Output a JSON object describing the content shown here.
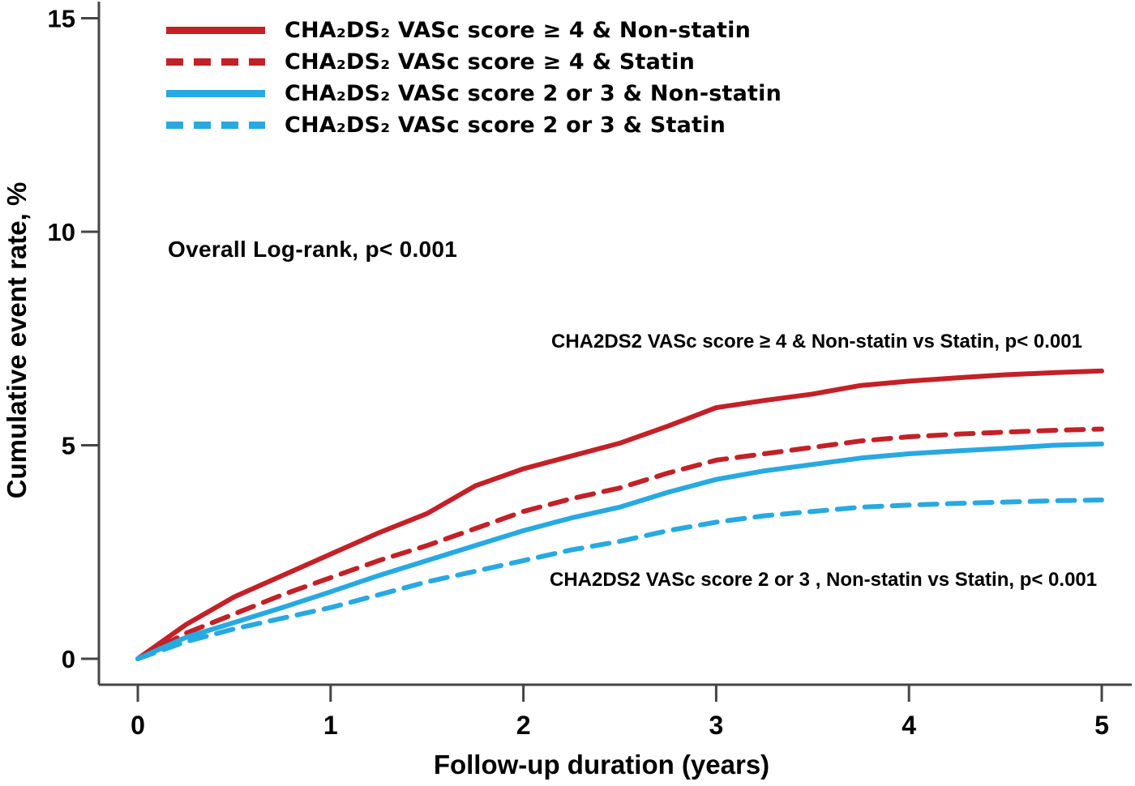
{
  "figure": {
    "ylabel": "Cumulative event rate, %",
    "xlabel": "Follow-up duration (years)"
  },
  "annotations": {
    "overall": "Overall Log-rank, p< 0.001",
    "upper_comparison": "CHA2DS2 VASc score ≥ 4 & Non-statin vs Statin, p< 0.001",
    "lower_comparison": "CHA2DS2 VASc score 2 or 3 , Non-statin vs Statin, p< 0.001"
  },
  "colors": {
    "red": "#c32127",
    "blue": "#27a9e1",
    "axis": "#454545",
    "text": "#000000"
  },
  "chart_data": {
    "type": "line",
    "title": "",
    "xlabel": "Follow-up duration (years)",
    "ylabel": "Cumulative event rate, %",
    "xlim": [
      0,
      5.2
    ],
    "ylim": [
      0,
      15.6
    ],
    "xticks": [
      0,
      1,
      2,
      3,
      4,
      5
    ],
    "yticks": [
      0,
      5,
      10,
      15
    ],
    "grid": false,
    "legend_position": "top-left",
    "x": [
      0,
      0.25,
      0.5,
      0.75,
      1,
      1.25,
      1.5,
      1.75,
      2,
      2.25,
      2.5,
      2.75,
      3,
      3.25,
      3.5,
      3.75,
      4,
      4.25,
      4.5,
      4.75,
      5
    ],
    "series": [
      {
        "name": "CHA₂DS₂ VASc score ≥ 4 & Non-statin",
        "style": "solid",
        "color": "#c32127",
        "values": [
          0,
          0.8,
          1.45,
          1.95,
          2.45,
          2.95,
          3.4,
          4.05,
          4.45,
          4.75,
          5.05,
          5.45,
          5.88,
          6.05,
          6.2,
          6.4,
          6.5,
          6.58,
          6.65,
          6.7,
          6.74
        ]
      },
      {
        "name": "CHA₂DS₂ VASc score ≥ 4 & Statin",
        "style": "dashed",
        "color": "#c32127",
        "values": [
          0,
          0.6,
          1.05,
          1.5,
          1.9,
          2.3,
          2.65,
          3.05,
          3.45,
          3.75,
          4.0,
          4.35,
          4.65,
          4.8,
          4.95,
          5.1,
          5.2,
          5.26,
          5.31,
          5.35,
          5.38
        ]
      },
      {
        "name": "CHA₂DS₂ VASc score 2 or 3 & Non-statin",
        "style": "solid",
        "color": "#27a9e1",
        "values": [
          0,
          0.5,
          0.85,
          1.2,
          1.57,
          1.95,
          2.3,
          2.65,
          3.0,
          3.3,
          3.55,
          3.9,
          4.2,
          4.4,
          4.55,
          4.7,
          4.8,
          4.87,
          4.93,
          5.0,
          5.03
        ]
      },
      {
        "name": "CHA₂DS₂ VASc score 2 or 3 & Statin",
        "style": "dashed",
        "color": "#27a9e1",
        "values": [
          0,
          0.4,
          0.7,
          0.95,
          1.2,
          1.5,
          1.8,
          2.05,
          2.3,
          2.55,
          2.75,
          3.0,
          3.2,
          3.35,
          3.45,
          3.55,
          3.6,
          3.64,
          3.67,
          3.7,
          3.72
        ]
      }
    ]
  }
}
